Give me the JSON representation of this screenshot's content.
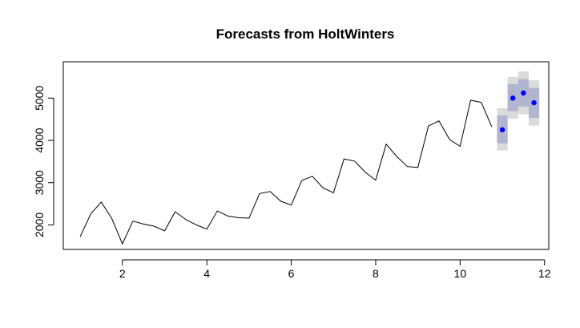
{
  "chart_data": {
    "type": "line",
    "title": "Forecasts from HoltWinters",
    "xlabel": "",
    "ylabel": "",
    "xlim": [
      0.6,
      12.1
    ],
    "ylim": [
      1420,
      5860
    ],
    "x_ticks": [
      2,
      4,
      6,
      8,
      10,
      12
    ],
    "y_ticks": [
      2000,
      3000,
      4000,
      5000
    ],
    "grid": false,
    "legend": "none",
    "series": [
      {
        "kind": "observed",
        "color": "#000000",
        "x": [
          1.0,
          1.25,
          1.5,
          1.75,
          2.0,
          2.25,
          2.5,
          2.75,
          3.0,
          3.25,
          3.5,
          3.75,
          4.0,
          4.25,
          4.5,
          4.75,
          5.0,
          5.25,
          5.5,
          5.75,
          6.0,
          6.25,
          6.5,
          6.75,
          7.0,
          7.25,
          7.5,
          7.75,
          8.0,
          8.25,
          8.5,
          8.75,
          9.0,
          9.25,
          9.5,
          9.75,
          10.0,
          10.25,
          10.5,
          10.75
        ],
        "y": [
          1720,
          2260,
          2540,
          2150,
          1550,
          2090,
          2020,
          1970,
          1860,
          2310,
          2130,
          2000,
          1900,
          2330,
          2210,
          2170,
          2160,
          2740,
          2790,
          2560,
          2470,
          3050,
          3150,
          2880,
          2760,
          3560,
          3510,
          3250,
          3060,
          3910,
          3620,
          3380,
          3360,
          4340,
          4460,
          4020,
          3860,
          4950,
          4900,
          4320
        ]
      },
      {
        "kind": "forecast",
        "color": "#0000ff",
        "x": [
          11.0,
          11.25,
          11.5,
          11.75
        ],
        "y": [
          4250,
          5000,
          5120,
          4890
        ],
        "lower_80": [
          3930,
          4690,
          4800,
          4530
        ],
        "upper_80": [
          4590,
          5330,
          5450,
          5240
        ],
        "lower_95": [
          3760,
          4510,
          4620,
          4350
        ],
        "upper_95": [
          4760,
          5500,
          5630,
          5420
        ]
      }
    ],
    "colors": {
      "band_80": "#b1b5cf",
      "band_95": "#dbdbdb",
      "forecast_point": "#0000ff"
    }
  }
}
